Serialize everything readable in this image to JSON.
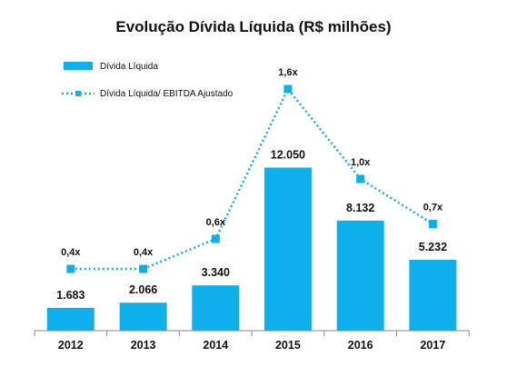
{
  "chart_data": {
    "type": "bar",
    "title": "Evolução Dívida Líquida (R$ milhões)",
    "categories": [
      "2012",
      "2013",
      "2014",
      "2015",
      "2016",
      "2017"
    ],
    "series": [
      {
        "name": "Dívida Líquida",
        "type": "bar",
        "values": [
          1683,
          2066,
          3340,
          12050,
          8132,
          5232
        ],
        "labels": [
          "1.683",
          "2.066",
          "3.340",
          "12.050",
          "8.132",
          "5.232"
        ]
      },
      {
        "name": "Dívida Líquida/ EBITDA Ajustado",
        "type": "line",
        "style": "dotted",
        "values": [
          0.4,
          0.4,
          0.6,
          1.6,
          1.0,
          0.7
        ],
        "labels": [
          "0,4x",
          "0,4x",
          "0,6x",
          "1,6x",
          "1,0x",
          "0,7x"
        ]
      }
    ],
    "legend_position": "top-left",
    "grid": false,
    "colors": {
      "bar": "#0DB0EB",
      "line": "#0DB0EB",
      "axis": "#888888"
    }
  }
}
